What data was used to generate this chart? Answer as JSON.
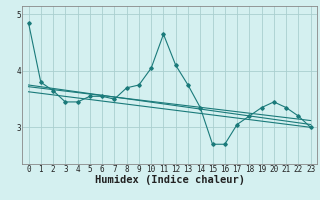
{
  "title": "",
  "xlabel": "Humidex (Indice chaleur)",
  "ylabel": "",
  "bg_color": "#d4f0f0",
  "grid_color": "#aacfcf",
  "line_color": "#1a7a7a",
  "axis_color": "#888888",
  "x": [
    0,
    1,
    2,
    3,
    4,
    5,
    6,
    7,
    8,
    9,
    10,
    11,
    12,
    13,
    14,
    15,
    16,
    17,
    18,
    19,
    20,
    21,
    22,
    23
  ],
  "y_main": [
    4.85,
    3.8,
    3.65,
    3.45,
    3.45,
    3.55,
    3.55,
    3.5,
    3.7,
    3.75,
    4.05,
    4.65,
    4.1,
    3.75,
    3.35,
    2.7,
    2.7,
    3.05,
    3.2,
    3.35,
    3.45,
    3.35,
    3.2,
    3.0
  ],
  "trend_lines": [
    [
      [
        0,
        3.75
      ],
      [
        23,
        3.05
      ]
    ],
    [
      [
        0,
        3.72
      ],
      [
        23,
        3.12
      ]
    ],
    [
      [
        0,
        3.63
      ],
      [
        23,
        3.0
      ]
    ]
  ],
  "ylim": [
    2.35,
    5.15
  ],
  "xlim": [
    -0.5,
    23.5
  ],
  "yticks": [
    3,
    4,
    5
  ],
  "xticks": [
    0,
    1,
    2,
    3,
    4,
    5,
    6,
    7,
    8,
    9,
    10,
    11,
    12,
    13,
    14,
    15,
    16,
    17,
    18,
    19,
    20,
    21,
    22,
    23
  ],
  "tick_fontsize": 5.5,
  "xlabel_fontsize": 7.5
}
